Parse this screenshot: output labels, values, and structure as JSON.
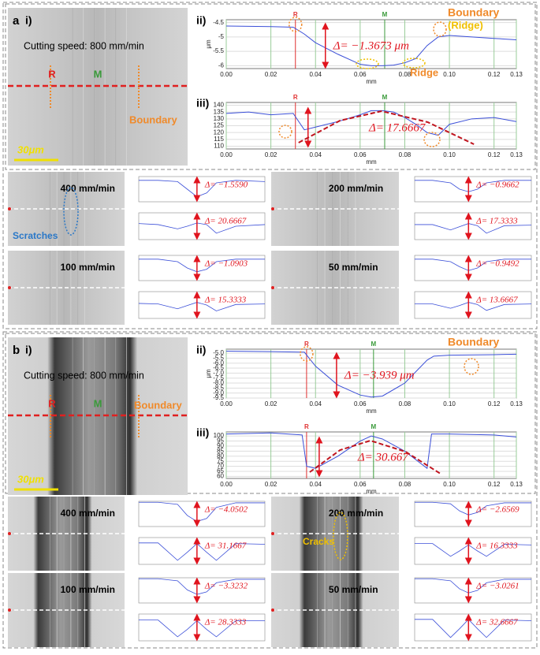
{
  "panels": [
    {
      "label": "a",
      "image_label": "i)",
      "speed": "Cutting speed: 800 mm/min",
      "marker_r": "R",
      "marker_m": "M",
      "boundary": "Boundary",
      "scale_bar": "30μm",
      "profile": {
        "label": "ii)",
        "x_label": "mm",
        "y_label": "μm",
        "xlim": [
          0,
          0.13
        ],
        "xticks": [
          {
            "value": 0,
            "label": "0.00"
          },
          0.02,
          0.04,
          0.06,
          0.08,
          {
            "value": 0.1,
            "label": "0.10"
          },
          0.12,
          0.13
        ],
        "ylim": [
          -6.1,
          -4.4
        ],
        "yticks": [
          -4.5,
          -5,
          -5.5,
          -6
        ],
        "r_x": 0.031,
        "m_x": 0.071,
        "x": [
          0,
          0.01,
          0.02,
          0.03,
          0.035,
          0.04,
          0.05,
          0.06,
          0.065,
          0.07,
          0.075,
          0.08,
          0.085,
          0.09,
          0.095,
          0.1,
          0.11,
          0.12,
          0.13
        ],
        "values": [
          -4.62,
          -4.63,
          -4.64,
          -4.66,
          -4.9,
          -5.2,
          -5.6,
          -5.95,
          -6.0,
          -6.0,
          -5.98,
          -5.9,
          -5.75,
          -5.3,
          -5.0,
          -4.95,
          -5.0,
          -5.05,
          -5.1
        ],
        "color": "#3b4fd8",
        "delta": "Δ= −1.3673 μm",
        "annotations": [
          "Boundary",
          "(Ridge)",
          "Ridge"
        ]
      },
      "force": {
        "label": "iii)",
        "x_label": "mm",
        "xlim": [
          0,
          0.13
        ],
        "xticks": [
          {
            "value": 0,
            "label": "0.00"
          },
          0.02,
          0.04,
          0.06,
          0.08,
          {
            "value": 0.1,
            "label": "0.10"
          },
          0.12,
          0.13
        ],
        "ylim": [
          108,
          142
        ],
        "yticks": [
          110,
          115,
          120,
          125,
          130,
          135,
          140
        ],
        "x": [
          0,
          0.01,
          0.02,
          0.03,
          0.035,
          0.04,
          0.05,
          0.06,
          0.065,
          0.07,
          0.075,
          0.08,
          0.085,
          0.09,
          0.095,
          0.1,
          0.11,
          0.12,
          0.13
        ],
        "values": [
          134,
          135,
          133,
          134,
          122,
          124,
          128,
          133,
          136,
          136,
          135,
          131,
          126,
          120,
          118,
          126,
          130,
          131,
          128
        ],
        "color": "#3b4fd8",
        "delta": "Δ= 17.6667"
      },
      "small": {
        "x": [
          0,
          0.02,
          0.04,
          0.05,
          0.06,
          0.07,
          0.08,
          0.1,
          0.13
        ],
        "top_ylim": [
          -2,
          0
        ],
        "bottom_ylim": [
          100,
          150
        ],
        "items": [
          {
            "speed": "400 mm/min",
            "delta_top": "Δ= −1.5590",
            "delta_bottom": "Δ= 20.6667",
            "note": "Scratches",
            "top": [
              -0.3,
              -0.3,
              -0.4,
              -1.0,
              -1.6,
              -1.3,
              -0.5,
              -0.3,
              -0.4
            ],
            "bottom": [
              130,
              128,
              120,
              125,
              131,
              128,
              112,
              125,
              128
            ]
          },
          {
            "speed": "200 mm/min",
            "delta_top": "Δ= −0.9662",
            "delta_bottom": "Δ= 17.3333",
            "top": [
              -0.3,
              -0.3,
              -0.5,
              -1.0,
              -1.2,
              -1.0,
              -0.5,
              -0.3,
              -0.3
            ],
            "bottom": [
              128,
              128,
              118,
              124,
              130,
              126,
              112,
              126,
              127
            ]
          },
          {
            "speed": "100 mm/min",
            "delta_top": "Δ= −1.0903",
            "delta_bottom": "Δ= 15.3333",
            "top": [
              -0.3,
              -0.3,
              -0.5,
              -1.0,
              -1.3,
              -1.1,
              -0.5,
              -0.3,
              -0.3
            ],
            "bottom": [
              128,
              127,
              118,
              124,
              130,
              125,
              114,
              126,
              127
            ]
          },
          {
            "speed": "50 mm/min",
            "delta_top": "Δ= −0.9492",
            "delta_bottom": "Δ= 13.6667",
            "top": [
              -0.3,
              -0.3,
              -0.5,
              -0.9,
              -1.2,
              -1.0,
              -0.5,
              -0.3,
              -0.3
            ],
            "bottom": [
              127,
              127,
              119,
              124,
              130,
              126,
              115,
              126,
              127
            ]
          }
        ]
      }
    },
    {
      "label": "b",
      "image_label": "i)",
      "speed": "Cutting speed: 800 mm/min",
      "marker_r": "R",
      "marker_m": "M",
      "boundary": "Boundary",
      "scale_bar": "30μm",
      "profile": {
        "label": "ii)",
        "x_label": "mm",
        "y_label": "μm",
        "xlim": [
          0,
          0.13
        ],
        "xticks": [
          {
            "value": 0,
            "label": "0.00"
          },
          0.02,
          0.04,
          0.06,
          0.08,
          {
            "value": 0.1,
            "label": "0.10"
          },
          0.12,
          0.13
        ],
        "ylim": [
          -9.5,
          -4.6
        ],
        "yticks": [
          {
            "value": -5,
            "label": "-5.0"
          },
          -5.5,
          {
            "value": -6,
            "label": "-6.0"
          },
          -6.5,
          {
            "value": -7,
            "label": "-7.0"
          },
          -7.5,
          {
            "value": -8,
            "label": "-8.0"
          },
          -8.5,
          {
            "value": -9,
            "label": "-9.0"
          },
          -9.5
        ],
        "r_x": 0.036,
        "m_x": 0.066,
        "x": [
          0,
          0.02,
          0.035,
          0.04,
          0.05,
          0.06,
          0.065,
          0.07,
          0.08,
          0.09,
          0.093,
          0.1,
          0.12,
          0.13
        ],
        "values": [
          -4.8,
          -4.85,
          -4.9,
          -6.3,
          -8.2,
          -9.2,
          -9.4,
          -9.3,
          -8.0,
          -5.7,
          -5.3,
          -5.2,
          -5.15,
          -5.1
        ],
        "color": "#3b4fd8",
        "delta": "Δ= −3.939 μm",
        "annotations": [
          "Boundary"
        ]
      },
      "force": {
        "label": "iii)",
        "x_label": "mm",
        "xlim": [
          0,
          0.13
        ],
        "xticks": [
          {
            "value": 0,
            "label": "0.00"
          },
          0.02,
          0.04,
          0.06,
          0.08,
          {
            "value": 0.1,
            "label": "0.10"
          },
          0.12,
          0.13
        ],
        "ylim": [
          58,
          104
        ],
        "yticks": [
          60,
          65,
          70,
          75,
          80,
          85,
          90,
          95,
          100
        ],
        "x": [
          0,
          0.02,
          0.034,
          0.036,
          0.04,
          0.05,
          0.06,
          0.065,
          0.07,
          0.08,
          0.09,
          0.092,
          0.1,
          0.12,
          0.13
        ],
        "values": [
          102,
          103,
          101,
          70,
          68,
          80,
          95,
          100,
          97,
          85,
          68,
          102,
          102,
          101,
          99
        ],
        "color": "#3b4fd8",
        "delta": "Δ= 30.667"
      },
      "small": {
        "x": [
          0,
          0.02,
          0.04,
          0.05,
          0.06,
          0.07,
          0.08,
          0.1,
          0.13
        ],
        "top_ylim": [
          -5,
          0
        ],
        "bottom_ylim": [
          0,
          40
        ],
        "items": [
          {
            "speed": "400 mm/min",
            "delta_top": "Δ= −4.0502",
            "delta_bottom": "Δ= 31.1667",
            "top": [
              -0.2,
              -0.2,
              -0.6,
              -2.8,
              -4.0,
              -3.4,
              -1.2,
              -0.3,
              -0.3
            ],
            "bottom": [
              32,
              32,
              6,
              18,
              31,
              18,
              6,
              31,
              30
            ]
          },
          {
            "speed": "200 mm/min",
            "delta_top": "Δ= −2.6569",
            "delta_bottom": "Δ= 16.3333",
            "note": "Cracks",
            "top": [
              -0.2,
              -0.2,
              -0.5,
              -1.9,
              -2.7,
              -2.2,
              -0.9,
              -0.3,
              -0.3
            ],
            "bottom": [
              31,
              31,
              12,
              20,
              29,
              20,
              12,
              30,
              29
            ]
          },
          {
            "speed": "100 mm/min",
            "delta_top": "Δ= −3.3232",
            "delta_bottom": "Δ= 28.3333",
            "top": [
              -0.2,
              -0.2,
              -0.6,
              -2.4,
              -3.3,
              -2.8,
              -1.0,
              -0.3,
              -0.3
            ],
            "bottom": [
              31,
              31,
              6,
              17,
              30,
              17,
              6,
              30,
              30
            ]
          },
          {
            "speed": "50 mm/min",
            "delta_top": "Δ= −3.0261",
            "delta_bottom": "Δ= 32.6667",
            "top": [
              -0.2,
              -0.2,
              -0.6,
              -2.2,
              -3.0,
              -2.5,
              -1.0,
              -0.3,
              -0.3
            ],
            "bottom": [
              32,
              32,
              5,
              18,
              32,
              18,
              5,
              31,
              30
            ]
          }
        ]
      }
    }
  ]
}
